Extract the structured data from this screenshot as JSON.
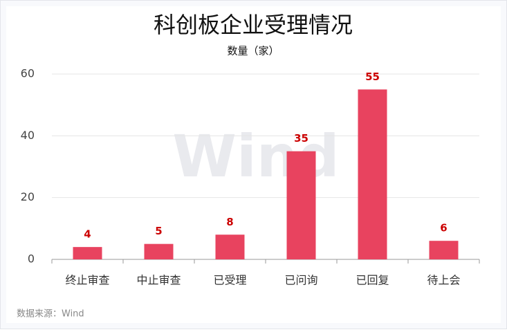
{
  "chart_data": {
    "type": "bar",
    "title": "科创板企业受理情况",
    "subtitle": "数量（家）",
    "categories": [
      "终止审查",
      "中止审查",
      "已受理",
      "已问询",
      "已回复",
      "待上会"
    ],
    "values": [
      4,
      5,
      8,
      35,
      55,
      6
    ],
    "color": "#e8435f",
    "value_label_color": "#cc0000",
    "ylim": [
      0,
      60
    ],
    "yticks": [
      0,
      20,
      40,
      60
    ],
    "grid": true,
    "source": "数据来源：Wind",
    "watermark": "Wind"
  }
}
